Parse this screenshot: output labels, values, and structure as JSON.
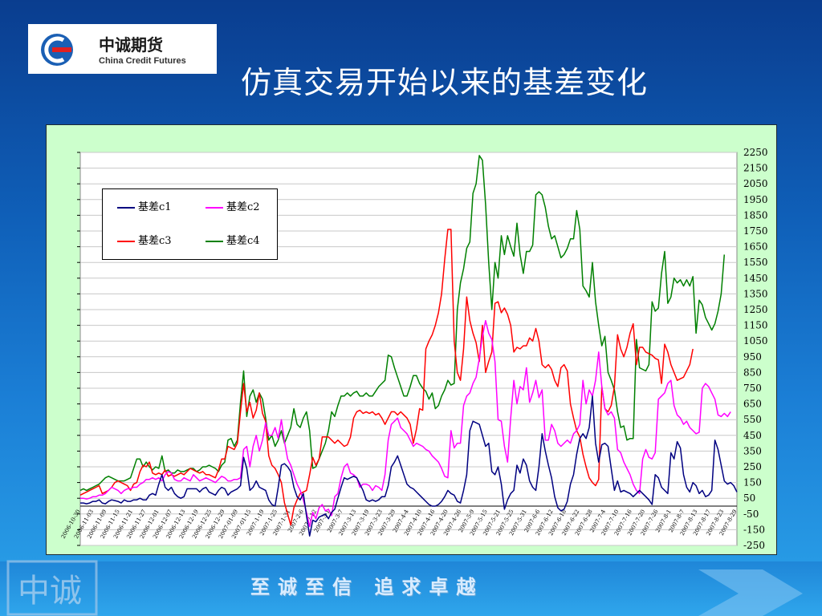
{
  "header": {
    "logo_cn": "中诚期货",
    "logo_en": "China Credit Futures",
    "title": "仿真交易开始以来的基差变化"
  },
  "footer": {
    "slogan": "至诚至信  追求卓越",
    "seal_chars": "中诚"
  },
  "colors": {
    "background_top": "#0a3d8f",
    "plot_background": "#ccffcc",
    "c1": "#000080",
    "c2": "#ff00ff",
    "c3": "#ff0000",
    "c4": "#008000"
  },
  "chart_data": {
    "type": "line",
    "title": "",
    "xlabel": "",
    "ylabel": "",
    "ylim": [
      -250,
      2250
    ],
    "yticks": [
      2250,
      2150,
      2050,
      1950,
      1850,
      1750,
      1650,
      1550,
      1450,
      1350,
      1250,
      1150,
      1050,
      950,
      850,
      750,
      650,
      550,
      450,
      350,
      250,
      150,
      50,
      -50,
      -150,
      -250
    ],
    "grid": true,
    "legend_position": "top-left",
    "x_count": 210,
    "x_tick_labels": [
      "2006-10-30",
      "2006-11-03",
      "2006-11-09",
      "2006-11-15",
      "2006-11-21",
      "2006-11-27",
      "2006-12-01",
      "2006-12-07",
      "2006-12-13",
      "2006-12-19",
      "2006-12-25",
      "2006-12-29",
      "2007-01-09",
      "2007-01-15",
      "2007-1-19",
      "2007-1-25",
      "2007-1-31",
      "2007-2-6",
      "2007-2-12",
      "2007-3-1",
      "2007-3-7",
      "2007-3-13",
      "2007-3-19",
      "2007-3-23",
      "2007-3-29",
      "2007-4-4",
      "2007-4-10",
      "2007-4-16",
      "2007-4-20",
      "2007-4-26",
      "2007-5-9",
      "2007-5-15",
      "2007-5-21",
      "2007-5-25",
      "2007-5-31",
      "2007-6-6",
      "2007-6-12",
      "2007-6-18",
      "2007-6-22",
      "2007-6-28",
      "2007-7-4",
      "2007-7-10",
      "2007-7-16",
      "2007-7-20",
      "2007-7-26",
      "2007-8-1",
      "2007-8-7",
      "2007-8-13",
      "2007-8-17",
      "2007-8-23",
      "2007-8-29"
    ],
    "series": [
      {
        "name": "基差c1",
        "color": "#000080",
        "values": [
          20,
          20,
          15,
          20,
          30,
          30,
          40,
          20,
          15,
          30,
          40,
          35,
          30,
          20,
          40,
          30,
          30,
          40,
          40,
          50,
          40,
          40,
          70,
          80,
          70,
          140,
          200,
          120,
          100,
          120,
          80,
          60,
          50,
          60,
          110,
          110,
          110,
          110,
          90,
          110,
          120,
          90,
          80,
          70,
          100,
          120,
          110,
          70,
          90,
          100,
          110,
          130,
          310,
          240,
          100,
          120,
          160,
          120,
          110,
          100,
          40,
          10,
          0,
          120,
          260,
          270,
          250,
          220,
          120,
          60,
          40,
          80,
          -60,
          -190,
          -90,
          -100,
          -70,
          -60,
          -50,
          -80,
          -40,
          -20,
          50,
          120,
          180,
          170,
          180,
          190,
          180,
          140,
          100,
          40,
          30,
          40,
          30,
          40,
          60,
          60,
          130,
          250,
          280,
          320,
          260,
          200,
          140,
          120,
          110,
          90,
          70,
          50,
          30,
          10,
          0,
          0,
          10,
          30,
          60,
          100,
          80,
          70,
          30,
          20,
          100,
          200,
          480,
          540,
          530,
          520,
          450,
          380,
          400,
          220,
          200,
          250,
          140,
          -20,
          40,
          80,
          100,
          260,
          210,
          300,
          260,
          160,
          120,
          100,
          250,
          460,
          350,
          260,
          180,
          60,
          -10,
          -30,
          -20,
          30,
          140,
          200,
          330,
          430,
          460,
          430,
          500,
          700,
          400,
          280,
          390,
          400,
          380,
          240,
          100,
          160,
          90,
          100,
          90,
          80,
          60,
          80,
          100,
          80,
          60,
          40,
          10,
          200,
          180,
          120,
          100,
          80,
          340,
          300,
          410,
          370,
          200,
          120,
          90,
          150,
          130,
          80,
          100,
          60,
          70,
          100,
          420,
          360,
          260,
          160,
          140,
          150,
          130,
          90
        ]
      },
      {
        "name": "基差c2",
        "color": "#ff00ff",
        "values": [
          50,
          50,
          45,
          50,
          60,
          60,
          70,
          70,
          80,
          100,
          120,
          110,
          100,
          80,
          100,
          110,
          110,
          120,
          120,
          140,
          150,
          170,
          170,
          180,
          170,
          180,
          160,
          200,
          220,
          210,
          170,
          160,
          160,
          180,
          170,
          160,
          200,
          180,
          160,
          170,
          180,
          170,
          160,
          150,
          170,
          190,
          180,
          160,
          160,
          170,
          170,
          180,
          360,
          380,
          250,
          380,
          450,
          350,
          420,
          530,
          450,
          450,
          500,
          430,
          550,
          410,
          300,
          260,
          200,
          140,
          100,
          40,
          -40,
          -130,
          -40,
          -80,
          -10,
          10,
          -30,
          -20,
          -60,
          60,
          80,
          180,
          250,
          270,
          210,
          200,
          180,
          120,
          140,
          140,
          130,
          100,
          130,
          120,
          100,
          200,
          420,
          520,
          540,
          560,
          500,
          480,
          460,
          420,
          380,
          400,
          390,
          380,
          360,
          350,
          320,
          300,
          280,
          240,
          190,
          180,
          480,
          370,
          400,
          400,
          640,
          700,
          720,
          780,
          820,
          940,
          1080,
          1180,
          1100,
          1060,
          920,
          550,
          540,
          380,
          280,
          560,
          800,
          650,
          760,
          740,
          880,
          660,
          720,
          800,
          690,
          740,
          420,
          420,
          520,
          480,
          400,
          380,
          400,
          420,
          400,
          460,
          480,
          520,
          800,
          650,
          740,
          700,
          800,
          980,
          760,
          620,
          580,
          600,
          560,
          360,
          340,
          280,
          240,
          200,
          140,
          100,
          80,
          300,
          360,
          310,
          300,
          340,
          680,
          700,
          720,
          780,
          800,
          640,
          580,
          560,
          520,
          540,
          500,
          480,
          460,
          470,
          750,
          780,
          760,
          720,
          680,
          580,
          570,
          590,
          570,
          600
        ]
      },
      {
        "name": "基差c3",
        "color": "#ff0000",
        "values": [
          70,
          80,
          90,
          100,
          110,
          120,
          130,
          80,
          90,
          100,
          120,
          150,
          160,
          150,
          140,
          130,
          100,
          140,
          150,
          220,
          260,
          250,
          280,
          210,
          200,
          210,
          200,
          230,
          190,
          200,
          190,
          200,
          210,
          200,
          220,
          240,
          230,
          220,
          210,
          220,
          200,
          200,
          190,
          180,
          230,
          300,
          300,
          380,
          370,
          360,
          400,
          600,
          780,
          600,
          660,
          560,
          610,
          720,
          590,
          540,
          320,
          260,
          240,
          200,
          150,
          20,
          -50,
          -120,
          -10,
          40,
          80,
          90,
          100,
          200,
          310,
          260,
          300,
          440,
          440,
          440,
          420,
          400,
          420,
          400,
          380,
          390,
          440,
          560,
          600,
          610,
          590,
          600,
          590,
          600,
          580,
          590,
          560,
          520,
          560,
          600,
          600,
          580,
          600,
          580,
          560,
          520,
          400,
          490,
          620,
          610,
          1000,
          1050,
          1090,
          1150,
          1230,
          1350,
          1570,
          1760,
          1760,
          1050,
          850,
          800,
          1000,
          1330,
          1180,
          1100,
          1040,
          920,
          1150,
          850,
          920,
          980,
          1290,
          1300,
          1230,
          1260,
          1220,
          1150,
          980,
          1010,
          1000,
          1020,
          1020,
          1070,
          1050,
          1130,
          1050,
          900,
          880,
          900,
          870,
          800,
          760,
          880,
          900,
          860,
          650,
          560,
          480,
          440,
          330,
          250,
          180,
          150,
          130,
          170,
          760,
          620,
          600,
          640,
          760,
          1090,
          1000,
          950,
          1010,
          1100,
          1160,
          900,
          1010,
          1010,
          980,
          970,
          960,
          940,
          930,
          780,
          1030,
          980,
          900,
          850,
          800,
          810,
          820,
          860,
          900,
          1000
        ]
      },
      {
        "name": "基差c4",
        "color": "#008000",
        "values": [
          100,
          110,
          100,
          110,
          120,
          130,
          140,
          160,
          180,
          190,
          180,
          170,
          160,
          160,
          160,
          170,
          180,
          240,
          300,
          300,
          250,
          280,
          250,
          230,
          250,
          240,
          320,
          220,
          230,
          210,
          210,
          230,
          220,
          220,
          230,
          240,
          240,
          220,
          230,
          250,
          250,
          260,
          250,
          240,
          220,
          260,
          280,
          420,
          430,
          380,
          420,
          660,
          860,
          570,
          700,
          740,
          660,
          720,
          680,
          560,
          420,
          450,
          380,
          420,
          480,
          400,
          450,
          500,
          620,
          520,
          500,
          560,
          600,
          480,
          240,
          250,
          300,
          350,
          400,
          480,
          600,
          570,
          640,
          700,
          700,
          720,
          700,
          720,
          730,
          700,
          700,
          720,
          700,
          700,
          730,
          760,
          780,
          800,
          960,
          950,
          880,
          820,
          760,
          700,
          700,
          760,
          830,
          830,
          780,
          750,
          730,
          680,
          720,
          620,
          640,
          700,
          740,
          800,
          770,
          780,
          1250,
          1420,
          1510,
          1640,
          1680,
          1990,
          2050,
          2230,
          2200,
          1920,
          1550,
          1250,
          1550,
          1450,
          1720,
          1600,
          1720,
          1650,
          1590,
          1800,
          1600,
          1480,
          1620,
          1620,
          1660,
          1980,
          2000,
          1980,
          1900,
          1780,
          1700,
          1720,
          1650,
          1580,
          1600,
          1640,
          1700,
          1700,
          1880,
          1760,
          1400,
          1370,
          1330,
          1550,
          1300,
          1150,
          1020,
          1080,
          850,
          800,
          740,
          600,
          500,
          510,
          420,
          430,
          430,
          1060,
          880,
          870,
          860,
          900,
          1300,
          1240,
          1260,
          1480,
          1620,
          1290,
          1330,
          1450,
          1420,
          1440,
          1400,
          1440,
          1400,
          1460,
          1100,
          1310,
          1280,
          1200,
          1160,
          1120,
          1160,
          1240,
          1350,
          1600
        ]
      }
    ]
  }
}
